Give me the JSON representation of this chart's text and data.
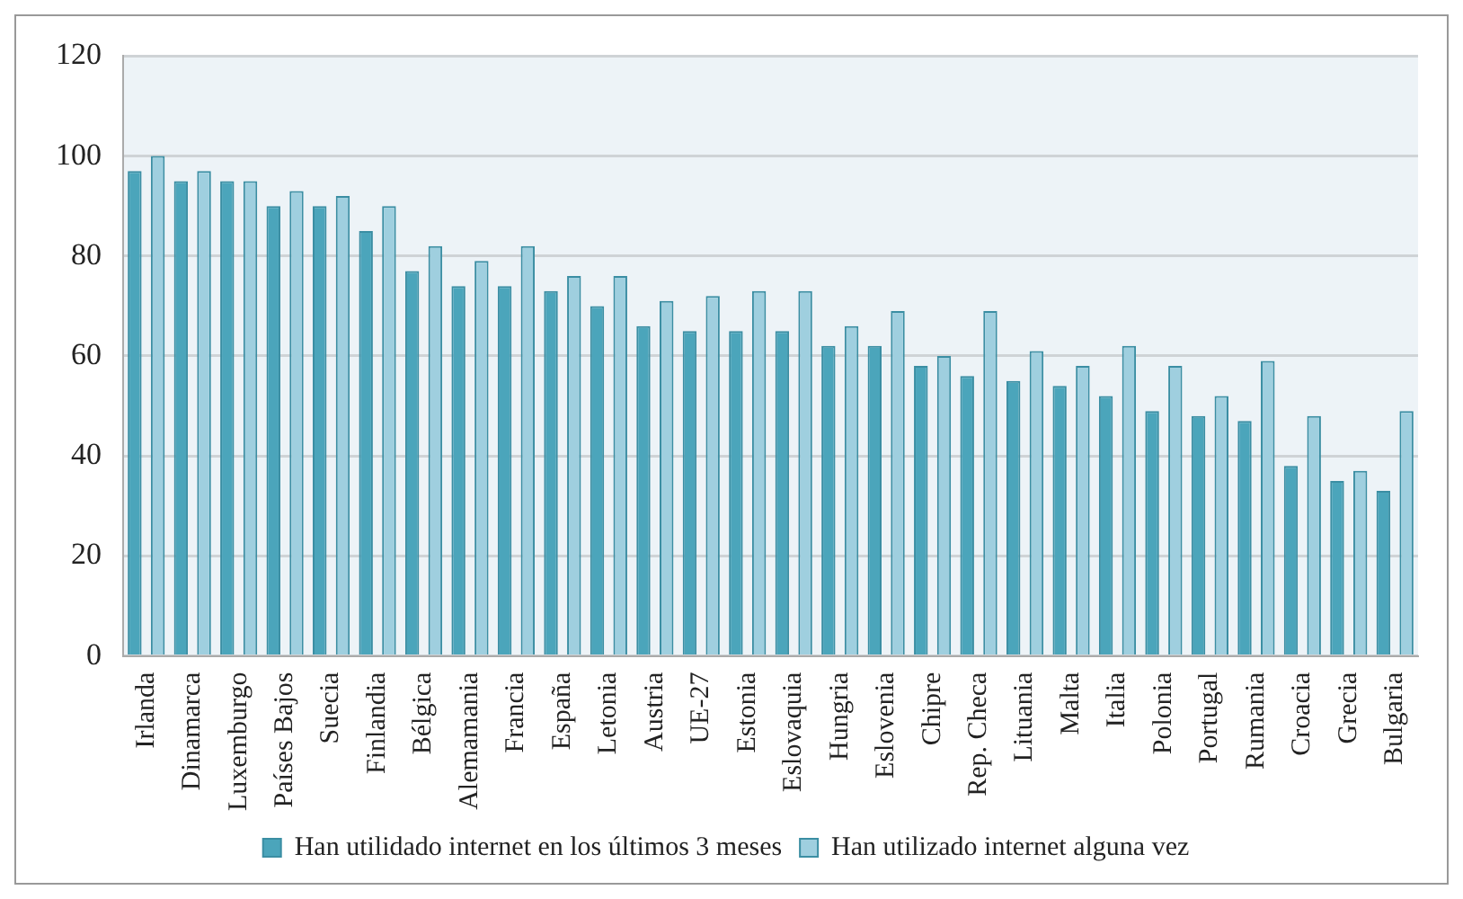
{
  "chart_data": {
    "type": "bar",
    "categories": [
      "Irlanda",
      "Dinamarca",
      "Luxemburgo",
      "Países Bajos",
      "Suecia",
      "Finlandia",
      "Bélgica",
      "Alemamania",
      "Francia",
      "España",
      "Letonia",
      "Austria",
      "UE-27",
      "Estonia",
      "Eslovaquia",
      "Hungria",
      "Eslovenia",
      "Chipre",
      "Rep. Checa",
      "Lituania",
      "Malta",
      "Italia",
      "Polonia",
      "Portugal",
      "Rumania",
      "Croacia",
      "Grecia",
      "Bulgaria"
    ],
    "series": [
      {
        "name": "Han utilidado internet en los últimos 3 meses",
        "color": "#4ba5bb",
        "values": [
          97,
          95,
          95,
          90,
          90,
          85,
          77,
          74,
          74,
          73,
          70,
          66,
          65,
          65,
          65,
          62,
          62,
          58,
          56,
          55,
          54,
          52,
          49,
          48,
          47,
          38,
          35,
          33
        ]
      },
      {
        "name": "Han utilizado internet alguna vez",
        "color": "#9fcfdf",
        "values": [
          100,
          97,
          95,
          93,
          92,
          90,
          82,
          79,
          82,
          76,
          76,
          71,
          72,
          73,
          73,
          66,
          69,
          60,
          69,
          61,
          58,
          62,
          58,
          52,
          59,
          48,
          37,
          49
        ]
      }
    ],
    "ylim": [
      0,
      120
    ],
    "yticks": [
      0,
      20,
      40,
      60,
      80,
      100,
      120
    ],
    "grid": "y",
    "legend": "bottom"
  }
}
